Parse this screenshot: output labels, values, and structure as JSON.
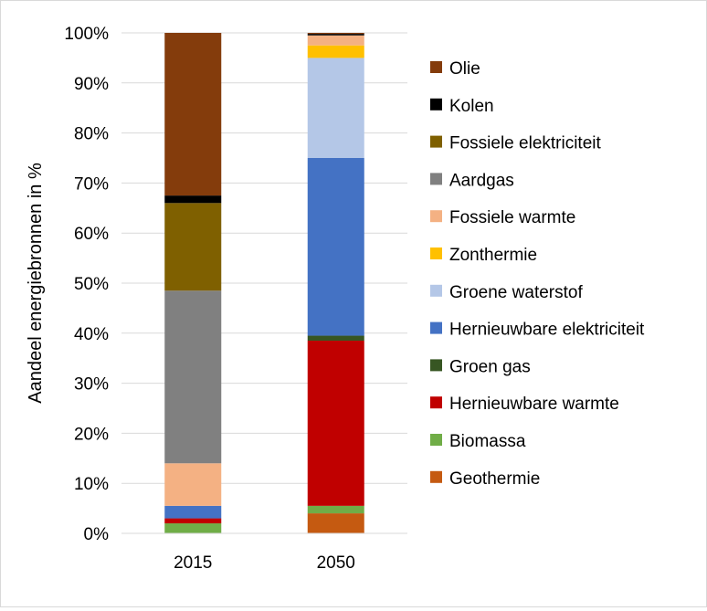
{
  "chart_data": {
    "type": "bar",
    "stacked": true,
    "categories": [
      "2015",
      "2050"
    ],
    "ylabel": "Aandeel energiebronnen in %",
    "ylim": [
      0,
      100
    ],
    "yticks": [
      "0%",
      "10%",
      "20%",
      "30%",
      "40%",
      "50%",
      "60%",
      "70%",
      "80%",
      "90%",
      "100%"
    ],
    "grid": true,
    "legend_position": "right",
    "series": [
      {
        "name": "Geothermie",
        "color": "#C55A11",
        "values": [
          0.0,
          4.0
        ]
      },
      {
        "name": "Biomassa",
        "color": "#70AD47",
        "values": [
          2.0,
          1.5
        ]
      },
      {
        "name": "Hernieuwbare warmte",
        "color": "#C00000",
        "values": [
          1.0,
          33.0
        ]
      },
      {
        "name": "Groen gas",
        "color": "#375623",
        "values": [
          0.0,
          1.0
        ]
      },
      {
        "name": "Hernieuwbare elektriciteit",
        "color": "#4472C4",
        "values": [
          2.5,
          35.5
        ]
      },
      {
        "name": "Groene waterstof",
        "color": "#B4C7E7",
        "values": [
          0.0,
          20.0
        ]
      },
      {
        "name": "Zonthermie",
        "color": "#FFC000",
        "values": [
          0.0,
          2.5
        ]
      },
      {
        "name": "Fossiele warmte",
        "color": "#F4B183",
        "values": [
          8.5,
          2.0
        ]
      },
      {
        "name": "Aardgas",
        "color": "#808080",
        "values": [
          34.5,
          0.0
        ]
      },
      {
        "name": "Fossiele elektriciteit",
        "color": "#7F6000",
        "values": [
          17.5,
          0.0
        ]
      },
      {
        "name": "Kolen",
        "color": "#000000",
        "values": [
          1.5,
          0.3
        ]
      },
      {
        "name": "Olie",
        "color": "#843C0C",
        "values": [
          32.5,
          0.2
        ]
      }
    ]
  }
}
